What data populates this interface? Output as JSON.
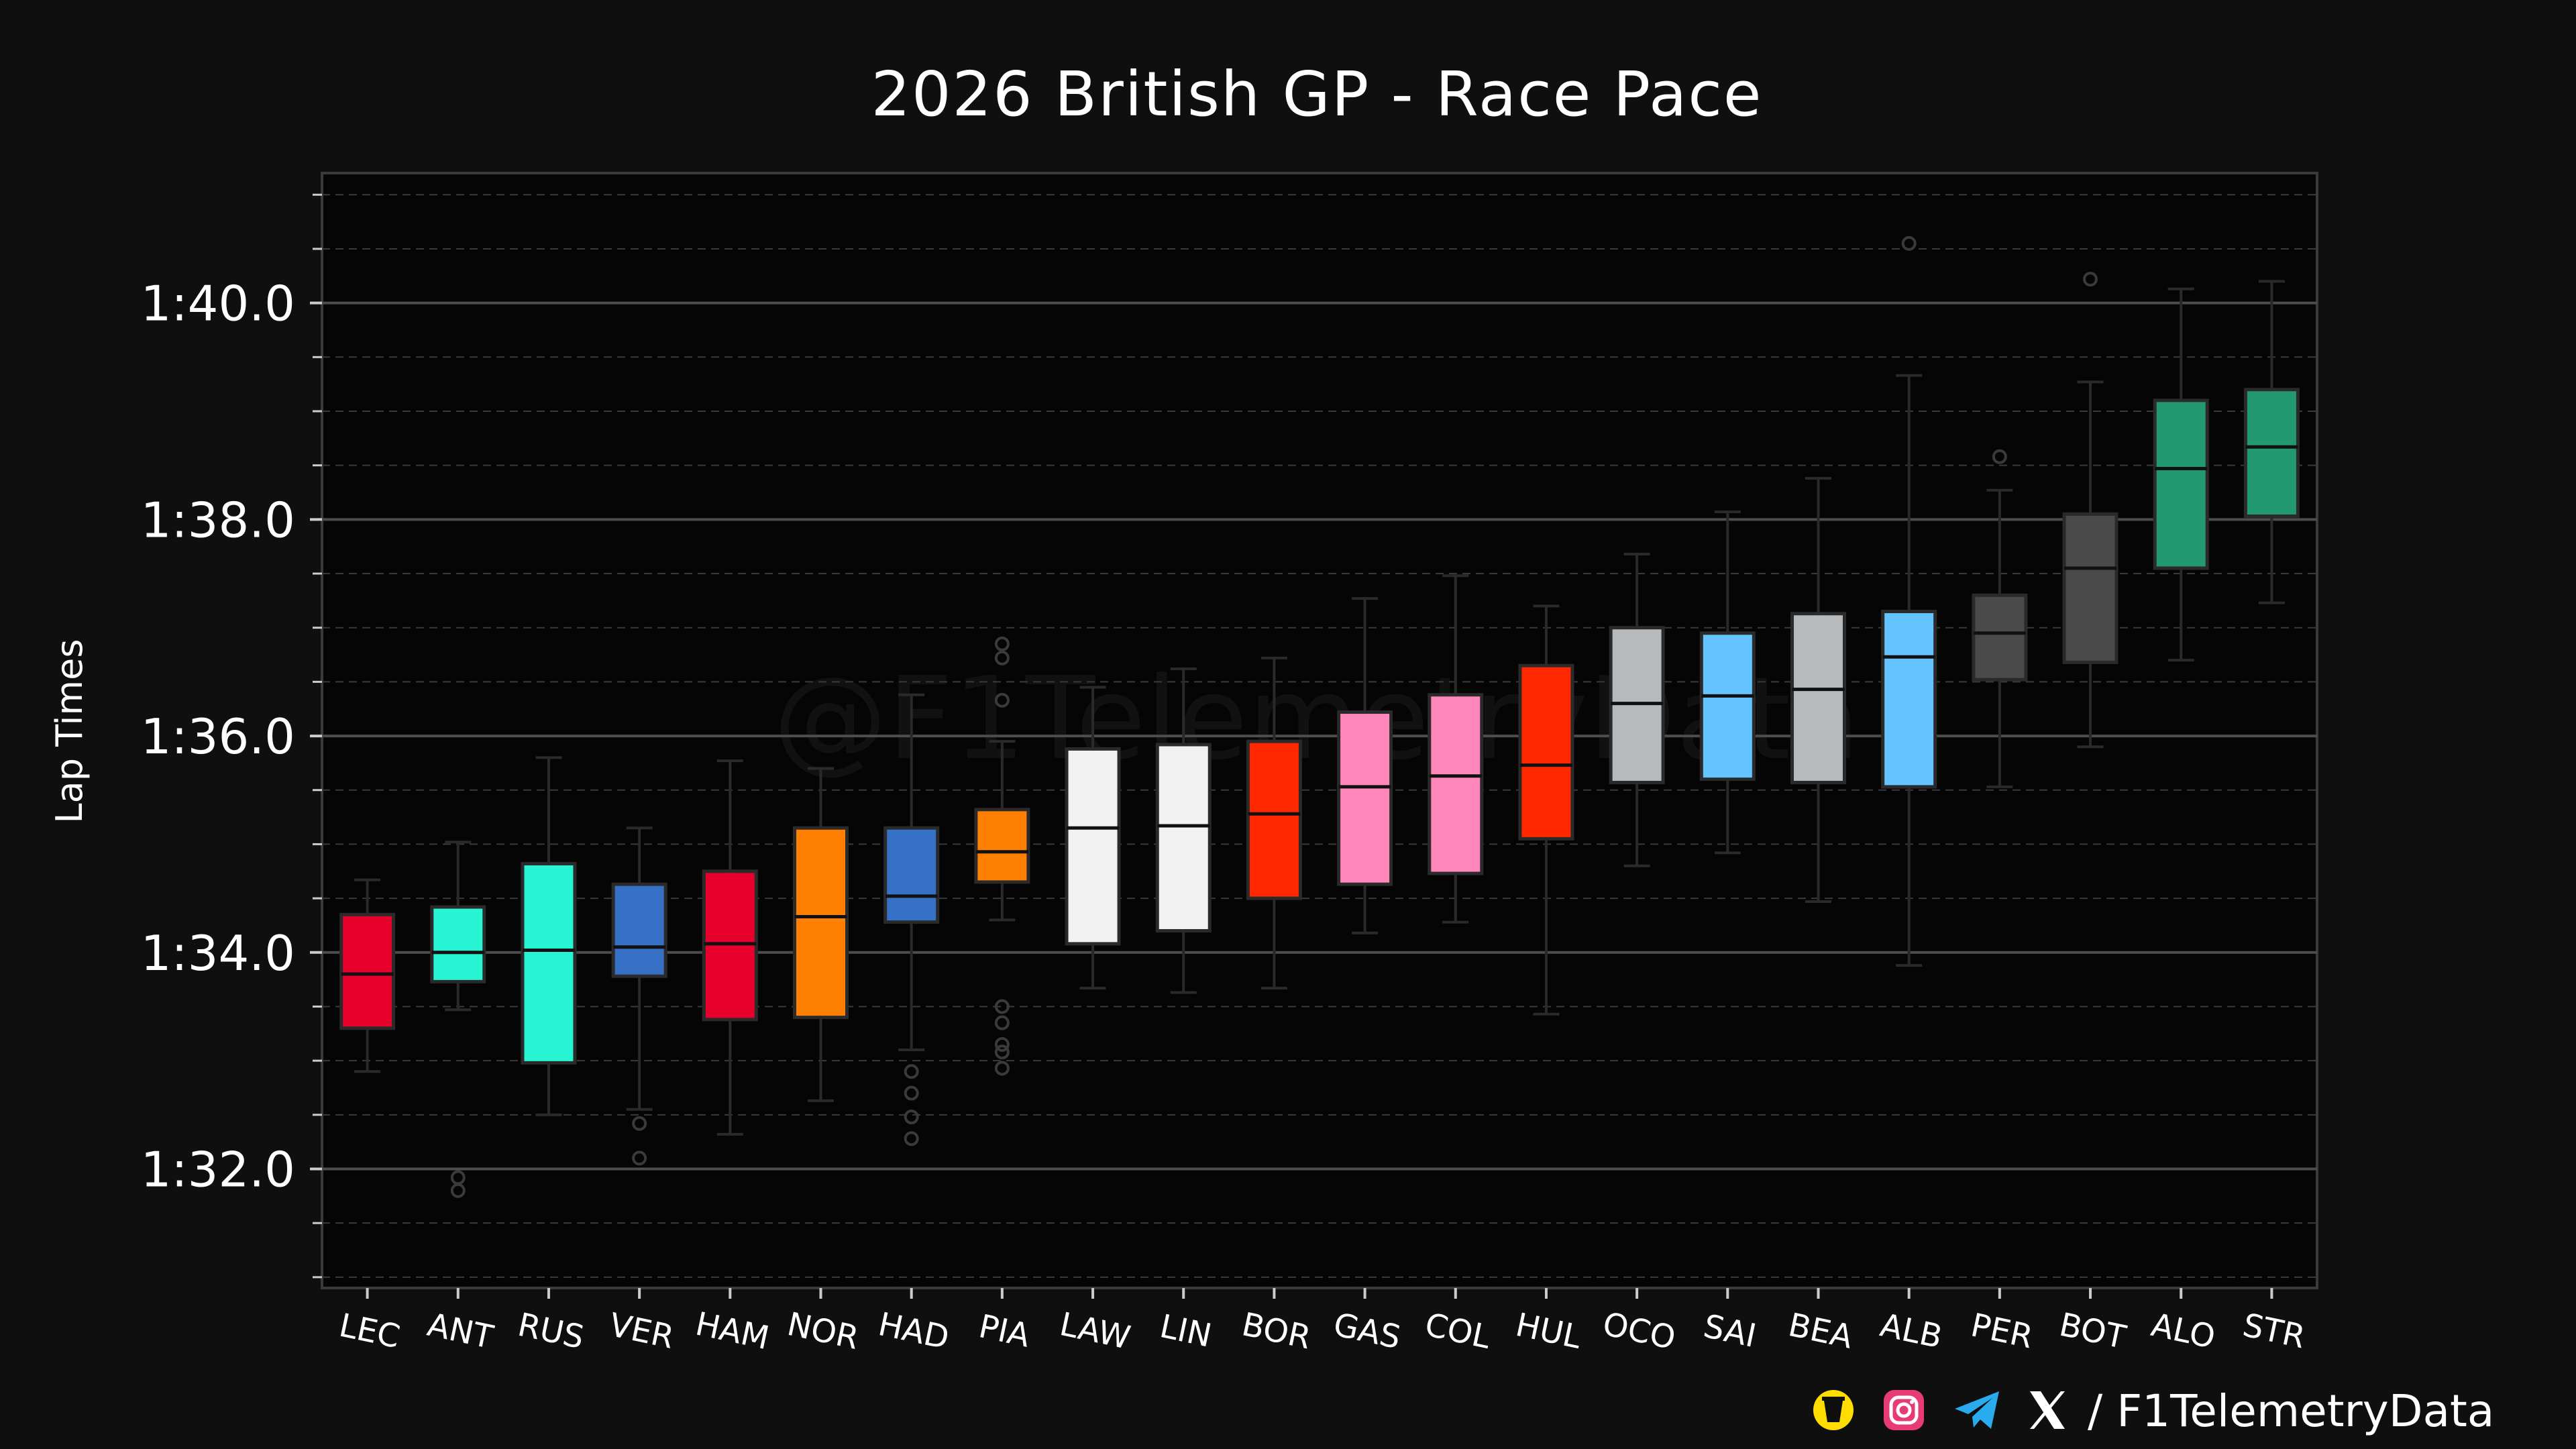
{
  "chart_data": {
    "type": "box",
    "title": "2026 British GP - Race Pace",
    "ylabel": "Lap Times",
    "xlabel": "",
    "ylim": [
      90.9,
      101.2
    ],
    "yticks": [
      92,
      94,
      96,
      98,
      100
    ],
    "ytick_labels": [
      "1:32.0",
      "1:34.0",
      "1:36.0",
      "1:38.0",
      "1:40.0"
    ],
    "grid": true,
    "watermark": "@F1TelemetryData",
    "drivers": [
      {
        "code": "LEC",
        "color": "#e8002d",
        "q1": 93.3,
        "median": 93.8,
        "q3": 94.35,
        "whisker_low": 92.9,
        "whisker_high": 94.67,
        "outliers": []
      },
      {
        "code": "ANT",
        "color": "#27f4d2",
        "q1": 93.73,
        "median": 94.0,
        "q3": 94.42,
        "whisker_low": 93.47,
        "whisker_high": 95.02,
        "outliers": [
          91.8,
          91.92
        ]
      },
      {
        "code": "RUS",
        "color": "#27f4d2",
        "q1": 92.98,
        "median": 94.02,
        "q3": 94.82,
        "whisker_low": 92.5,
        "whisker_high": 95.8,
        "outliers": []
      },
      {
        "code": "VER",
        "color": "#3671c6",
        "q1": 93.78,
        "median": 94.05,
        "q3": 94.63,
        "whisker_low": 92.55,
        "whisker_high": 95.15,
        "outliers": [
          92.42,
          92.1
        ]
      },
      {
        "code": "HAM",
        "color": "#e8002d",
        "q1": 93.38,
        "median": 94.08,
        "q3": 94.75,
        "whisker_low": 92.32,
        "whisker_high": 95.77,
        "outliers": []
      },
      {
        "code": "NOR",
        "color": "#ff8000",
        "q1": 93.4,
        "median": 94.33,
        "q3": 95.15,
        "whisker_low": 92.63,
        "whisker_high": 95.7,
        "outliers": []
      },
      {
        "code": "HAD",
        "color": "#3671c6",
        "q1": 94.28,
        "median": 94.52,
        "q3": 95.15,
        "whisker_low": 93.1,
        "whisker_high": 96.38,
        "outliers": [
          92.9,
          92.7,
          92.48,
          92.28
        ]
      },
      {
        "code": "PIA",
        "color": "#ff8000",
        "q1": 94.65,
        "median": 94.93,
        "q3": 95.32,
        "whisker_low": 94.3,
        "whisker_high": 95.95,
        "outliers": [
          96.85,
          96.72,
          96.33,
          93.5,
          93.35,
          93.15,
          93.08,
          92.93
        ]
      },
      {
        "code": "LAW",
        "color": "#f2f2f2",
        "q1": 94.08,
        "median": 95.15,
        "q3": 95.88,
        "whisker_low": 93.67,
        "whisker_high": 96.45,
        "outliers": []
      },
      {
        "code": "LIN",
        "color": "#f2f2f2",
        "q1": 94.2,
        "median": 95.17,
        "q3": 95.92,
        "whisker_low": 93.63,
        "whisker_high": 96.62,
        "outliers": []
      },
      {
        "code": "BOR",
        "color": "#ff2800",
        "q1": 94.5,
        "median": 95.28,
        "q3": 95.95,
        "whisker_low": 93.67,
        "whisker_high": 96.72,
        "outliers": []
      },
      {
        "code": "GAS",
        "color": "#ff87bc",
        "q1": 94.63,
        "median": 95.53,
        "q3": 96.22,
        "whisker_low": 94.18,
        "whisker_high": 97.27,
        "outliers": []
      },
      {
        "code": "COL",
        "color": "#ff87bc",
        "q1": 94.73,
        "median": 95.63,
        "q3": 96.38,
        "whisker_low": 94.28,
        "whisker_high": 97.48,
        "outliers": []
      },
      {
        "code": "HUL",
        "color": "#ff2800",
        "q1": 95.05,
        "median": 95.73,
        "q3": 96.65,
        "whisker_low": 93.43,
        "whisker_high": 97.2,
        "outliers": []
      },
      {
        "code": "OCO",
        "color": "#b6babd",
        "q1": 95.57,
        "median": 96.3,
        "q3": 97.0,
        "whisker_low": 94.8,
        "whisker_high": 97.68,
        "outliers": []
      },
      {
        "code": "SAI",
        "color": "#64c4ff",
        "q1": 95.6,
        "median": 96.37,
        "q3": 96.95,
        "whisker_low": 94.92,
        "whisker_high": 98.07,
        "outliers": []
      },
      {
        "code": "BEA",
        "color": "#b6babd",
        "q1": 95.57,
        "median": 96.43,
        "q3": 97.13,
        "whisker_low": 94.47,
        "whisker_high": 98.38,
        "outliers": []
      },
      {
        "code": "ALB",
        "color": "#64c4ff",
        "q1": 95.53,
        "median": 96.73,
        "q3": 97.15,
        "whisker_low": 93.88,
        "whisker_high": 99.33,
        "outliers": [
          100.55
        ]
      },
      {
        "code": "PER",
        "color": "#4a4a4a",
        "q1": 96.52,
        "median": 96.95,
        "q3": 97.3,
        "whisker_low": 95.53,
        "whisker_high": 98.27,
        "outliers": [
          98.58
        ]
      },
      {
        "code": "BOT",
        "color": "#4a4a4a",
        "q1": 96.68,
        "median": 97.55,
        "q3": 98.05,
        "whisker_low": 95.9,
        "whisker_high": 99.27,
        "outliers": [
          100.22
        ]
      },
      {
        "code": "ALO",
        "color": "#229971",
        "q1": 97.55,
        "median": 98.47,
        "q3": 99.1,
        "whisker_low": 96.7,
        "whisker_high": 100.13,
        "outliers": []
      },
      {
        "code": "STR",
        "color": "#229971",
        "q1": 98.03,
        "median": 98.67,
        "q3": 99.2,
        "whisker_low": 97.23,
        "whisker_high": 100.2,
        "outliers": []
      }
    ]
  },
  "footer": {
    "handle": "/ F1TelemetryData",
    "icons": [
      "buymeacoffee-icon",
      "instagram-icon",
      "telegram-icon",
      "x-icon"
    ]
  }
}
